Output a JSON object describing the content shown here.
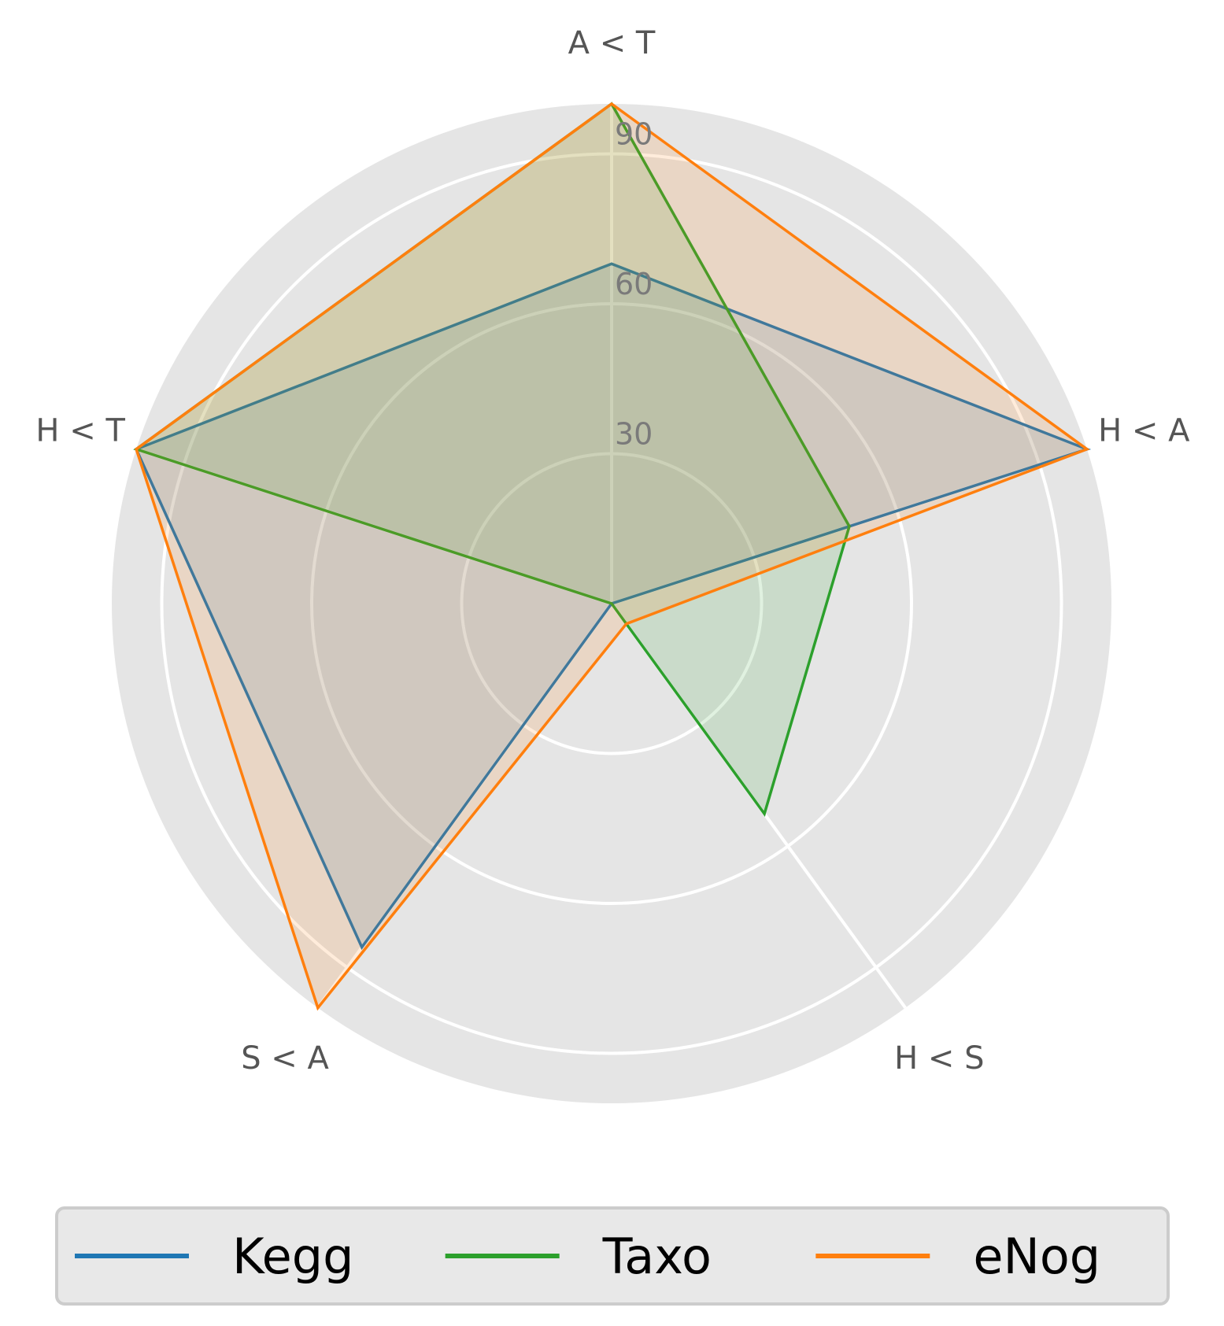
{
  "chart_data": {
    "type": "radar",
    "axes": [
      "A < T",
      "H < A",
      "H < S",
      "S < A",
      "H < T"
    ],
    "r_ticks": [
      30,
      60,
      90
    ],
    "r_tick_labels": [
      "30",
      "60",
      "90"
    ],
    "r_range": [
      0,
      100
    ],
    "grid": true,
    "legend_position": "bottom",
    "series": [
      {
        "name": "Kegg",
        "color": "#1f77b4",
        "values": [
          68,
          100,
          0,
          85,
          100
        ]
      },
      {
        "name": "Taxo",
        "color": "#2ca02c",
        "values": [
          100,
          50,
          52,
          0,
          100
        ]
      },
      {
        "name": "eNog",
        "color": "#ff7f0e",
        "values": [
          100,
          100,
          5,
          100,
          100
        ]
      }
    ],
    "colors": {
      "background": "#ffffff",
      "polar_background": "#e5e5e5",
      "grid": "#ffffff",
      "legend_background": "#e8e8e8",
      "legend_border": "#cccccc"
    }
  }
}
